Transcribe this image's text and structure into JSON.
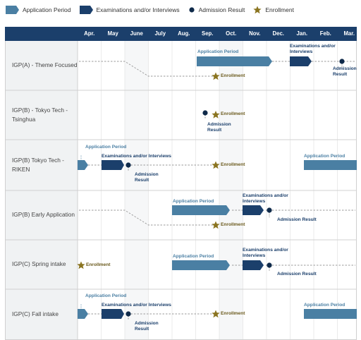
{
  "legend": {
    "application_period": "Application Period",
    "examinations": "Examinations and/or Interviews",
    "admission_result": "Admission Result",
    "enrollment": "Enrollment"
  },
  "months": [
    "Apr.",
    "May",
    "June",
    "July",
    "Aug.",
    "Sep.",
    "Oct.",
    "Nov.",
    "Dec.",
    "Jan.",
    "Feb.",
    "Mar."
  ],
  "rows": [
    {
      "label": "IGP(A) - Theme Focused",
      "annotations": {
        "application_period": "Application Period",
        "examinations": "Examinations and/or Interviews",
        "admission_result": "Admission Result",
        "enrollment": "Enrollment"
      }
    },
    {
      "label": "IGP(B) - Tokyo Tech - Tsinghua",
      "annotations": {
        "admission_result": "Admission Result",
        "enrollment": "Enrollment"
      }
    },
    {
      "label": "IGP(B) Tokyo Tech - RIKEN",
      "annotations": {
        "application_period": "Application Period",
        "examinations": "Examinations and/or Interviews",
        "admission_result": "Admission Result",
        "enrollment": "Enrollment",
        "application_period_2": "Application Period"
      }
    },
    {
      "label": "IGP(B) Early Application",
      "annotations": {
        "application_period": "Application Period",
        "examinations": "Examinations and/or Interviews",
        "admission_result": "Admission Result",
        "enrollment": "Enrollment"
      }
    },
    {
      "label": "IGP(C) Spring intake",
      "annotations": {
        "enrollment": "Enrollment",
        "application_period": "Application Period",
        "examinations": "Examinations and/or Interviews",
        "admission_result": "Admission Result"
      }
    },
    {
      "label": "IGP(C) Fall intake",
      "annotations": {
        "application_period": "Application Period",
        "examinations": "Examinations and/or Interviews",
        "admission_result": "Admission Result",
        "enrollment": "Enrollment",
        "application_period_2": "Application Period"
      }
    }
  ],
  "colors": {
    "header": "#1b3f6b",
    "application": "#4a7fa3",
    "examinations": "#1b3f6b",
    "result_dot": "#0f2a4a",
    "enrollment_star": "#8a7420",
    "label_bg": "#f0f2f3",
    "grid": "#dddddd"
  }
}
